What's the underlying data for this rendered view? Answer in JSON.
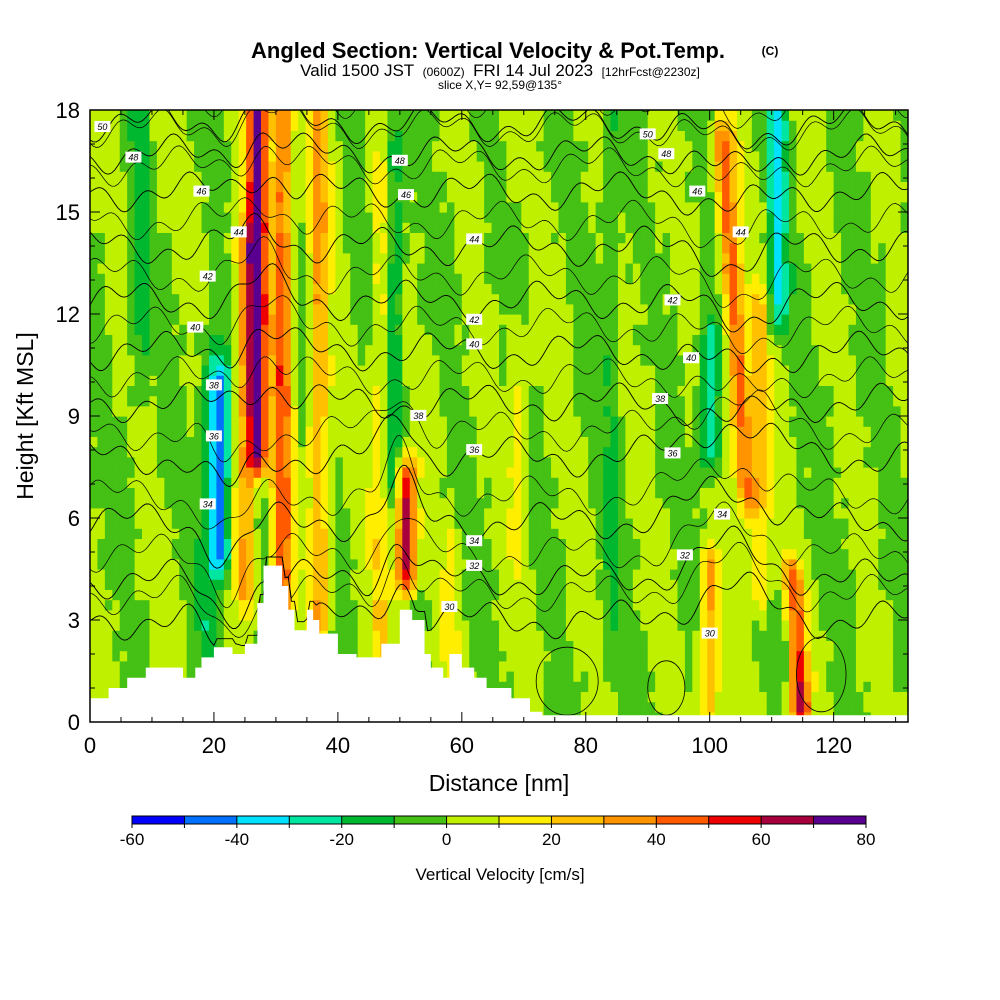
{
  "chart_data": {
    "type": "heatmap",
    "title": "Angled Section: Vertical Velocity & Pot.Temp.",
    "title_mark": "(C)",
    "valid_time": "Valid 1500 JST",
    "valid_utc": "(0600Z)",
    "valid_date": "FRI 14 Jul 2023",
    "forecast_info": "[12hrFcst@2230z]",
    "slice_info": "slice X,Y= 92,59@135°",
    "xlabel": "Distance [nm]",
    "ylabel": "Height [Kft MSL]",
    "xlim": [
      0,
      132
    ],
    "ylim": [
      0,
      18
    ],
    "x_ticks": [
      0,
      20,
      40,
      60,
      80,
      100,
      120
    ],
    "y_ticks": [
      0,
      3,
      6,
      9,
      12,
      15,
      18
    ],
    "colorbar": {
      "label": "Vertical Velocity [cm/s]",
      "ticks": [
        "-60",
        "-40",
        "-20",
        "0",
        "20",
        "40",
        "60",
        "80"
      ],
      "min": -60,
      "max": 80,
      "step": 10,
      "colors": [
        "#0000ff",
        "#0070ff",
        "#00e0ff",
        "#00e6a0",
        "#00b830",
        "#45c015",
        "#bff000",
        "#ffee00",
        "#ffc000",
        "#ff9400",
        "#ff5a00",
        "#ee0000",
        "#a8003c",
        "#5a0090"
      ]
    },
    "velocity_features": [
      {
        "x": 27,
        "zlo": 8,
        "zhi": 18,
        "w": 75
      },
      {
        "x": 31,
        "zlo": 3.5,
        "zhi": 18,
        "w": 45
      },
      {
        "x": 25,
        "zlo": 4,
        "zhi": 14,
        "w": 30
      },
      {
        "x": 37,
        "zlo": 3,
        "zhi": 18,
        "w": 30
      },
      {
        "x": 47,
        "zlo": 2,
        "zhi": 16,
        "w": 18
      },
      {
        "x": 51,
        "zlo": 4.5,
        "zhi": 7,
        "w": 65
      },
      {
        "x": 104,
        "zlo": 7,
        "zhi": 17,
        "w": 45
      },
      {
        "x": 108,
        "zlo": 4,
        "zhi": 12,
        "w": 25
      },
      {
        "x": 114,
        "zlo": 0.5,
        "zhi": 4,
        "w": 60
      },
      {
        "x": 100,
        "zlo": 0.5,
        "zhi": 4.5,
        "w": 30
      },
      {
        "x": 69,
        "zlo": 5,
        "zhi": 11,
        "w": 12
      },
      {
        "x": 58,
        "zlo": 1,
        "zhi": 5,
        "w": 10
      },
      {
        "x": 21,
        "zlo": 5,
        "zhi": 10,
        "w": -45
      },
      {
        "x": 19,
        "zlo": 2,
        "zhi": 11,
        "w": -15
      },
      {
        "x": 100,
        "zlo": 8,
        "zhi": 11,
        "w": -30
      },
      {
        "x": 111,
        "zlo": 12,
        "zhi": 18,
        "w": -30
      },
      {
        "x": 113,
        "zlo": 2,
        "zhi": 3.5,
        "w": -22
      },
      {
        "x": 49,
        "zlo": 7,
        "zhi": 17,
        "w": -20
      },
      {
        "x": 8,
        "zlo": 10,
        "zhi": 18,
        "w": -12
      },
      {
        "x": 84,
        "zlo": 2,
        "zhi": 18,
        "w": -10
      }
    ],
    "terrain": {
      "x": [
        0,
        1,
        3,
        6,
        9,
        12,
        15,
        17,
        18,
        20,
        22,
        23,
        25,
        27,
        28,
        29,
        31,
        32,
        33,
        35,
        36,
        37,
        40,
        43,
        47,
        50,
        52,
        54,
        55,
        57,
        58,
        60,
        62,
        64,
        66,
        68,
        71,
        73,
        132
      ],
      "h": [
        0.7,
        0.7,
        1.0,
        1.3,
        1.6,
        1.6,
        1.3,
        1.6,
        1.9,
        2.2,
        2.2,
        2.0,
        2.3,
        3.5,
        4.6,
        4.6,
        4.0,
        3.3,
        2.7,
        3.3,
        3.0,
        2.6,
        2.0,
        1.9,
        2.3,
        3.3,
        3.0,
        2.0,
        1.6,
        1.3,
        2.0,
        1.6,
        1.3,
        1.0,
        1.0,
        0.7,
        0.3,
        0.2,
        0.2
      ]
    },
    "theta_contours": [
      {
        "value": 30,
        "base": 3.0,
        "label": "30",
        "label_x": 58
      },
      {
        "value": 32,
        "base": 4.2,
        "label": "32",
        "label_x": 62
      },
      {
        "value": 34,
        "base": 5.9,
        "label": "34",
        "label_x": 62
      },
      {
        "value": 36,
        "base": 7.8,
        "label": "36",
        "label_x": 62
      },
      {
        "value": 38,
        "base": 9.4,
        "label": "38",
        "label_x": 53
      },
      {
        "value": 40,
        "base": 10.9,
        "label": "40",
        "label_x": 62
      },
      {
        "value": 42,
        "base": 12.4,
        "label": "42",
        "label_x": 62
      },
      {
        "value": 44,
        "base": 14.0,
        "label": "44",
        "label_x": 62
      },
      {
        "value": 46,
        "base": 15.6,
        "label": "46",
        "label_x": 51
      },
      {
        "value": 48,
        "base": 16.7,
        "label": "48",
        "label_x": 50
      },
      {
        "value": 50,
        "base": 17.6,
        "label": "50",
        "label_x": 90
      }
    ],
    "extra_contour_labels": [
      {
        "x": 2,
        "z": 17.5,
        "label": "50"
      },
      {
        "x": 7,
        "z": 16.6,
        "label": "48"
      },
      {
        "x": 18,
        "z": 15.6,
        "label": "46"
      },
      {
        "x": 24,
        "z": 14.4,
        "label": "44"
      },
      {
        "x": 19,
        "z": 13.1,
        "label": "42"
      },
      {
        "x": 17,
        "z": 11.6,
        "label": "40"
      },
      {
        "x": 20,
        "z": 9.9,
        "label": "38"
      },
      {
        "x": 20,
        "z": 8.4,
        "label": "36"
      },
      {
        "x": 19,
        "z": 6.4,
        "label": "34"
      },
      {
        "x": 93,
        "z": 16.7,
        "label": "48"
      },
      {
        "x": 98,
        "z": 15.6,
        "label": "46"
      },
      {
        "x": 105,
        "z": 14.4,
        "label": "44"
      },
      {
        "x": 94,
        "z": 12.4,
        "label": "42"
      },
      {
        "x": 97,
        "z": 10.7,
        "label": "40"
      },
      {
        "x": 92,
        "z": 9.5,
        "label": "38"
      },
      {
        "x": 94,
        "z": 7.9,
        "label": "36"
      },
      {
        "x": 102,
        "z": 6.1,
        "label": "34"
      },
      {
        "x": 96,
        "z": 4.9,
        "label": "32"
      },
      {
        "x": 100,
        "z": 2.6,
        "label": "30"
      }
    ]
  }
}
